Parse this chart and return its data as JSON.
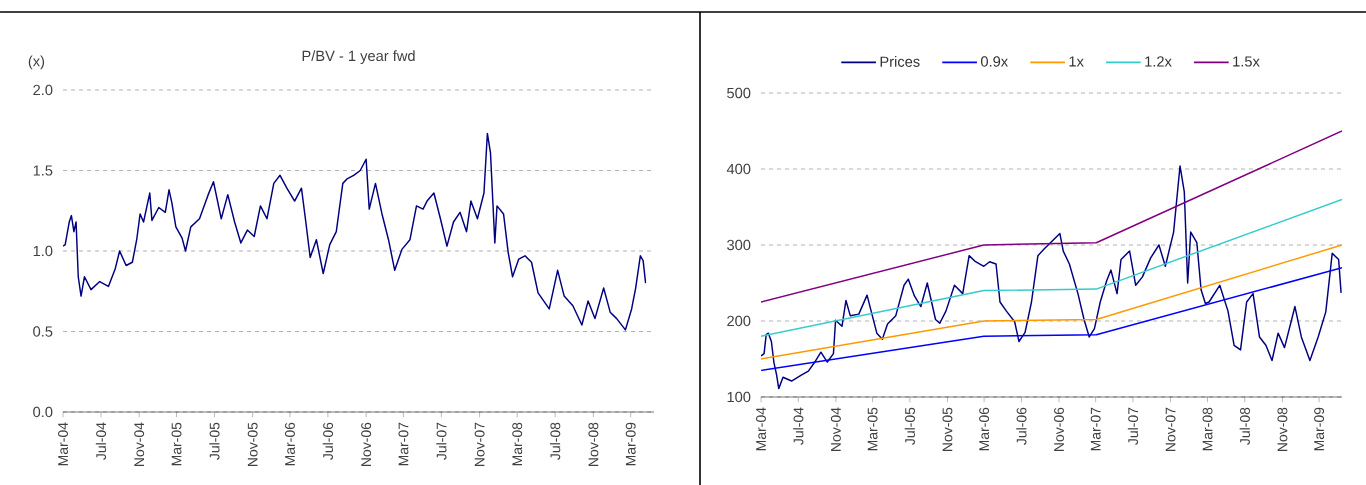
{
  "chart_data": [
    {
      "type": "line",
      "title": "P/BV - 1 year fwd",
      "ylabel": "(x)",
      "grid": "y",
      "marker": "none",
      "line_style": "solid",
      "xlim": [
        "2004-03-01",
        "2009-05-15"
      ],
      "ylim": [
        0,
        2
      ],
      "xticks": [
        {
          "value": "2004-03",
          "label": "Mar-04"
        },
        {
          "value": "2004-07",
          "label": "Jul-04"
        },
        {
          "value": "2004-11",
          "label": "Nov-04"
        },
        {
          "value": "2005-03",
          "label": "Mar-05"
        },
        {
          "value": "2005-07",
          "label": "Jul-05"
        },
        {
          "value": "2005-11",
          "label": "Nov-05"
        },
        {
          "value": "2006-03",
          "label": "Mar-06"
        },
        {
          "value": "2006-07",
          "label": "Jul-06"
        },
        {
          "value": "2006-11",
          "label": "Nov-06"
        },
        {
          "value": "2007-03",
          "label": "Mar-07"
        },
        {
          "value": "2007-07",
          "label": "Jul-07"
        },
        {
          "value": "2007-11",
          "label": "Nov-07"
        },
        {
          "value": "2008-03",
          "label": "Mar-08"
        },
        {
          "value": "2008-07",
          "label": "Jul-08"
        },
        {
          "value": "2008-11",
          "label": "Nov-08"
        },
        {
          "value": "2009-03",
          "label": "Mar-09"
        }
      ],
      "yticks": [
        {
          "value": 0,
          "label": "0.0"
        },
        0.5,
        {
          "value": 1,
          "label": "1.0"
        },
        1.5,
        {
          "value": 2,
          "label": "2.0"
        }
      ],
      "x": [
        "2004-03-01",
        "2004-03-08",
        "2004-03-21",
        "2004-03-28",
        "2004-04-05",
        "2004-04-12",
        "2004-04-19",
        "2004-04-28",
        "2004-05-09",
        "2004-05-30",
        "2004-06-27",
        "2004-07-25",
        "2004-08-16",
        "2004-08-30",
        "2004-09-20",
        "2004-10-10",
        "2004-10-24",
        "2004-11-04",
        "2004-11-15",
        "2004-12-05",
        "2004-12-12",
        "2005-01-03",
        "2005-01-24",
        "2005-02-05",
        "2005-02-14",
        "2005-02-27",
        "2005-03-19",
        "2005-03-30",
        "2005-04-16",
        "2005-05-14",
        "2005-06-11",
        "2005-06-28",
        "2005-07-23",
        "2005-08-13",
        "2005-09-04",
        "2005-09-24",
        "2005-10-15",
        "2005-11-06",
        "2005-11-26",
        "2005-12-17",
        "2006-01-08",
        "2006-01-28",
        "2006-02-19",
        "2006-03-16",
        "2006-04-07",
        "2006-04-21",
        "2006-05-05",
        "2006-05-25",
        "2006-06-16",
        "2006-07-07",
        "2006-07-28",
        "2006-08-18",
        "2006-09-02",
        "2006-09-22",
        "2006-10-13",
        "2006-11-01",
        "2006-11-11",
        "2006-12-01",
        "2006-12-22",
        "2007-01-12",
        "2007-02-01",
        "2007-02-24",
        "2007-03-22",
        "2007-04-12",
        "2007-05-03",
        "2007-05-16",
        "2007-06-07",
        "2007-06-28",
        "2007-07-19",
        "2007-08-09",
        "2007-08-30",
        "2007-09-20",
        "2007-10-04",
        "2007-10-25",
        "2007-11-15",
        "2007-11-26",
        "2007-12-06",
        "2007-12-20",
        "2007-12-27",
        "2008-01-17",
        "2008-02-01",
        "2008-02-15",
        "2008-03-06",
        "2008-03-26",
        "2008-04-16",
        "2008-05-07",
        "2008-06-12",
        "2008-07-09",
        "2008-07-30",
        "2008-08-27",
        "2008-09-25",
        "2008-10-15",
        "2008-11-06",
        "2008-12-04",
        "2008-12-25",
        "2009-01-15",
        "2009-02-12",
        "2009-03-04",
        "2009-03-17",
        "2009-04-01",
        "2009-04-10",
        "2009-04-18"
      ],
      "series": [
        {
          "color": "#000080",
          "values": [
            1.03,
            1.04,
            1.18,
            1.22,
            1.12,
            1.18,
            0.84,
            0.72,
            0.84,
            0.76,
            0.81,
            0.78,
            0.89,
            1.0,
            0.91,
            0.93,
            1.07,
            1.23,
            1.18,
            1.36,
            1.19,
            1.27,
            1.24,
            1.38,
            1.3,
            1.15,
            1.08,
            1.0,
            1.15,
            1.2,
            1.35,
            1.43,
            1.2,
            1.35,
            1.18,
            1.05,
            1.13,
            1.09,
            1.28,
            1.2,
            1.42,
            1.47,
            1.39,
            1.31,
            1.39,
            1.18,
            0.96,
            1.07,
            0.86,
            1.04,
            1.12,
            1.42,
            1.45,
            1.47,
            1.5,
            1.57,
            1.26,
            1.42,
            1.23,
            1.07,
            0.88,
            1.01,
            1.07,
            1.28,
            1.26,
            1.31,
            1.36,
            1.2,
            1.03,
            1.18,
            1.24,
            1.12,
            1.31,
            1.2,
            1.36,
            1.73,
            1.61,
            1.05,
            1.28,
            1.23,
            0.99,
            0.84,
            0.95,
            0.97,
            0.93,
            0.74,
            0.64,
            0.88,
            0.72,
            0.66,
            0.54,
            0.69,
            0.58,
            0.77,
            0.62,
            0.58,
            0.51,
            0.64,
            0.77,
            0.97,
            0.94,
            0.8
          ]
        }
      ]
    },
    {
      "type": "line",
      "grid": "y",
      "legend": "top",
      "marker": "none",
      "line_style": "solid",
      "xlim": [
        "2004-03-01",
        "2009-05-15"
      ],
      "ylim": [
        100,
        500
      ],
      "xticks": [
        {
          "value": "2004-03",
          "label": "Mar-04"
        },
        {
          "value": "2004-07",
          "label": "Jul-04"
        },
        {
          "value": "2004-11",
          "label": "Nov-04"
        },
        {
          "value": "2005-03",
          "label": "Mar-05"
        },
        {
          "value": "2005-07",
          "label": "Jul-05"
        },
        {
          "value": "2005-11",
          "label": "Nov-05"
        },
        {
          "value": "2006-03",
          "label": "Mar-06"
        },
        {
          "value": "2006-07",
          "label": "Jul-06"
        },
        {
          "value": "2006-11",
          "label": "Nov-06"
        },
        {
          "value": "2007-03",
          "label": "Mar-07"
        },
        {
          "value": "2007-07",
          "label": "Jul-07"
        },
        {
          "value": "2007-11",
          "label": "Nov-07"
        },
        {
          "value": "2008-03",
          "label": "Mar-08"
        },
        {
          "value": "2008-07",
          "label": "Jul-08"
        },
        {
          "value": "2008-11",
          "label": "Nov-08"
        },
        {
          "value": "2009-03",
          "label": "Mar-09"
        }
      ],
      "yticks": [
        100,
        200,
        300,
        400,
        500
      ],
      "series": [
        {
          "name": "Prices",
          "color": "#000080",
          "x": [
            "2004-03-01",
            "2004-03-11",
            "2004-03-18",
            "2004-03-25",
            "2004-04-04",
            "2004-04-12",
            "2004-04-21",
            "2004-04-28",
            "2004-05-12",
            "2004-06-09",
            "2004-07-12",
            "2004-08-03",
            "2004-08-24",
            "2004-09-13",
            "2004-10-04",
            "2004-10-24",
            "2004-10-31",
            "2004-11-21",
            "2004-12-04",
            "2004-12-18",
            "2005-01-15",
            "2005-02-11",
            "2005-02-25",
            "2005-03-15",
            "2005-04-02",
            "2005-04-19",
            "2005-05-16",
            "2005-06-12",
            "2005-06-26",
            "2005-07-16",
            "2005-08-06",
            "2005-08-27",
            "2005-09-23",
            "2005-10-07",
            "2005-10-27",
            "2005-11-24",
            "2005-12-21",
            "2006-01-11",
            "2006-02-01",
            "2006-02-28",
            "2006-03-19",
            "2006-04-09",
            "2006-04-22",
            "2006-05-13",
            "2006-06-09",
            "2006-06-23",
            "2006-07-13",
            "2006-08-03",
            "2006-08-24",
            "2006-09-14",
            "2006-10-04",
            "2006-11-04",
            "2006-11-15",
            "2006-12-05",
            "2007-01-02",
            "2007-01-22",
            "2007-02-08",
            "2007-02-25",
            "2007-03-16",
            "2007-04-06",
            "2007-04-20",
            "2007-05-10",
            "2007-05-23",
            "2007-06-20",
            "2007-07-10",
            "2007-08-01",
            "2007-08-28",
            "2007-09-24",
            "2007-10-15",
            "2007-11-11",
            "2007-12-02",
            "2007-12-16",
            "2007-12-27",
            "2008-01-06",
            "2008-01-26",
            "2008-02-09",
            "2008-02-23",
            "2008-03-06",
            "2008-04-10",
            "2008-05-07",
            "2008-05-27",
            "2008-06-17",
            "2008-07-07",
            "2008-07-28",
            "2008-08-18",
            "2008-09-08",
            "2008-09-28",
            "2008-10-18",
            "2008-11-08",
            "2008-12-12",
            "2009-01-02",
            "2009-01-30",
            "2009-02-26",
            "2009-03-23",
            "2009-04-13",
            "2009-05-04",
            "2009-05-12"
          ],
          "values": [
            154,
            157,
            182,
            184,
            173,
            146,
            129,
            111,
            126,
            121,
            129,
            134,
            146,
            159,
            146,
            157,
            201,
            193,
            227,
            207,
            209,
            234,
            212,
            184,
            176,
            196,
            207,
            247,
            255,
            233,
            219,
            250,
            202,
            197,
            213,
            247,
            236,
            286,
            278,
            272,
            278,
            275,
            225,
            213,
            199,
            173,
            185,
            225,
            286,
            295,
            303,
            315,
            292,
            275,
            236,
            202,
            179,
            190,
            225,
            253,
            267,
            236,
            281,
            292,
            247,
            258,
            283,
            300,
            272,
            317,
            404,
            370,
            250,
            317,
            303,
            241,
            223,
            225,
            247,
            213,
            168,
            162,
            225,
            236,
            179,
            168,
            148,
            184,
            165,
            219,
            179,
            148,
            179,
            212,
            289,
            281,
            237
          ]
        },
        {
          "name": "0.9x",
          "color": "#0000ff",
          "x": [
            "2004-03-01",
            "2006-02-28",
            "2007-03-03",
            "2009-05-15"
          ],
          "values": [
            135,
            180,
            182,
            270
          ]
        },
        {
          "name": "1x",
          "color": "#ff9900",
          "x": [
            "2004-03-01",
            "2006-02-28",
            "2007-03-03",
            "2009-05-15"
          ],
          "values": [
            150,
            200,
            202,
            300
          ]
        },
        {
          "name": "1.2x",
          "color": "#33cccc",
          "x": [
            "2004-03-01",
            "2006-02-28",
            "2007-03-03",
            "2009-05-15"
          ],
          "values": [
            180,
            240,
            242,
            360
          ]
        },
        {
          "name": "1.5x",
          "color": "#800080",
          "x": [
            "2004-03-01",
            "2006-02-28",
            "2007-03-03",
            "2009-05-15"
          ],
          "values": [
            225,
            300,
            303,
            450
          ]
        }
      ]
    }
  ]
}
